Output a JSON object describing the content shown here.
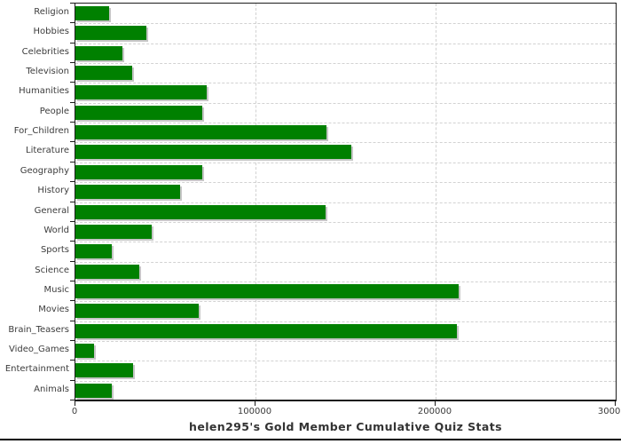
{
  "title": "helen295's Gold Member Cumulative Quiz Stats",
  "colors": {
    "bar": "#008000",
    "bar_shadow": "#c6c6c6",
    "grid": "#d2d2d2",
    "axis": "#1c1c1c",
    "label_text": "#3c3c3c",
    "title_text": "#333333",
    "background": "#ffffff"
  },
  "chart_data": {
    "type": "bar",
    "orientation": "horizontal",
    "title": "helen295's Gold Member Cumulative Quiz Stats",
    "xlabel": "",
    "ylabel": "",
    "xlim": [
      0,
      300000
    ],
    "x_ticks": [
      0,
      100000,
      200000,
      300000
    ],
    "x_tick_labels": [
      "0",
      "100000",
      "200000",
      "300000"
    ],
    "grid": "dashed",
    "legend": "none",
    "categories": [
      "Religion",
      "Hobbies",
      "Celebrities",
      "Television",
      "Humanities",
      "People",
      "For_Children",
      "Literature",
      "Geography",
      "History",
      "General",
      "World",
      "Sports",
      "Science",
      "Music",
      "Movies",
      "Brain_Teasers",
      "Video_Games",
      "Entertainment",
      "Animals"
    ],
    "values": [
      18700,
      39200,
      26000,
      31500,
      73100,
      70300,
      139600,
      153200,
      70300,
      58300,
      138900,
      42400,
      20200,
      35500,
      213000,
      68700,
      211800,
      10100,
      31800,
      20100
    ]
  }
}
